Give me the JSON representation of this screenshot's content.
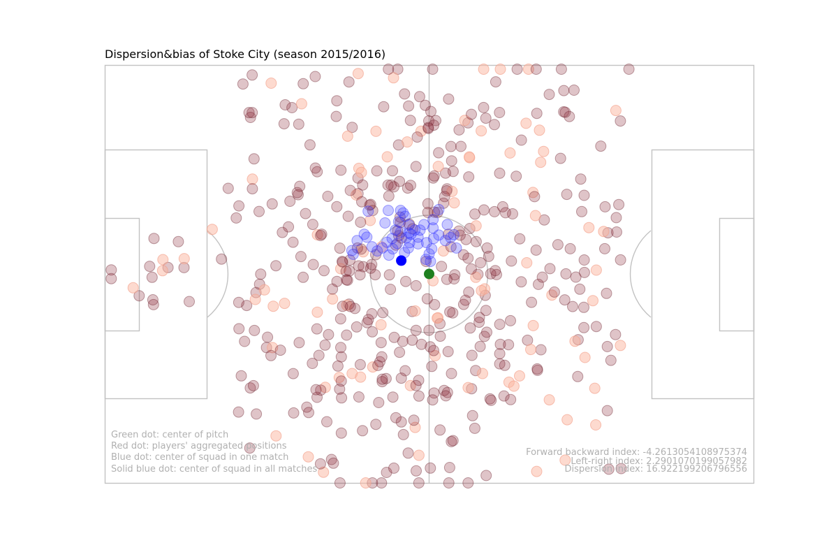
{
  "chart_data": {
    "type": "scatter",
    "title": "Dispersion&bias of Stoke City (season 2015/2016)",
    "xlim": [
      0,
      100
    ],
    "ylim": [
      0,
      100
    ],
    "grid": false,
    "annotations": {
      "legend_lines": [
        "Green dot: center of pitch",
        "Red dot: players' aggregated positions",
        "Blue dot: center of squad in one match",
        "Solid blue dot: center of squad in all matches"
      ],
      "index_lines": [
        "Forward backward index: -4.2613054108975374",
        "Left-right index: 2.2901070199057982",
        "Dispersion index: 16.922199206796556"
      ]
    },
    "series": [
      {
        "role": "players_aggregated_positions",
        "color": "#8b2c3a",
        "light_color": "#fbb5a0",
        "points_generated": 480,
        "seed": 20152016
      },
      {
        "role": "match_squad_centers",
        "color": "#3a3aff",
        "points": [
          [
            40,
            40.5
          ],
          [
            40.4,
            41.2
          ],
          [
            41.2,
            43.5
          ],
          [
            42,
            44.5
          ],
          [
            42.8,
            43.8
          ],
          [
            43.5,
            42.4
          ],
          [
            44.4,
            44
          ],
          [
            45.1,
            42.7
          ],
          [
            46.2,
            44.9
          ],
          [
            46.8,
            43.8
          ],
          [
            47,
            42.5
          ],
          [
            46.5,
            41.3
          ],
          [
            46.9,
            40.2
          ],
          [
            48.3,
            42.8
          ],
          [
            48.3,
            41.2
          ],
          [
            48.6,
            39.5
          ],
          [
            49.2,
            38.2
          ],
          [
            49.6,
            42.5
          ],
          [
            50.4,
            44
          ],
          [
            50.7,
            41.5
          ],
          [
            51.5,
            40.7
          ],
          [
            52.5,
            42
          ],
          [
            53.3,
            41.3
          ],
          [
            53.8,
            40.6
          ],
          [
            54.2,
            43.8
          ],
          [
            52.8,
            38.2
          ],
          [
            50.6,
            37
          ],
          [
            50.6,
            39
          ],
          [
            51.5,
            34.6
          ],
          [
            46,
            35.4
          ],
          [
            45.6,
            34.8
          ],
          [
            43.7,
            34.8
          ],
          [
            46.9,
            38.3
          ],
          [
            47.8,
            39.5
          ],
          [
            47.2,
            40.5
          ],
          [
            45.6,
            40
          ],
          [
            45.3,
            37.5
          ],
          [
            44.8,
            39.5
          ],
          [
            46.3,
            36.2
          ],
          [
            43.2,
            37.8
          ],
          [
            40.6,
            35
          ],
          [
            44.3,
            41.5
          ],
          [
            43.8,
            45.5
          ],
          [
            38.9,
            42
          ],
          [
            38.3,
            45.3
          ],
          [
            38.1,
            44.4
          ],
          [
            50.2,
            47
          ],
          [
            49.5,
            46.5
          ],
          [
            50,
            45.2
          ]
        ]
      },
      {
        "role": "center_of_squad_all_matches",
        "color": "#0000ff",
        "points": [
          [
            45.7,
            53.2
          ]
        ]
      },
      {
        "role": "center_of_pitch",
        "color": "#1e8020",
        "points": [
          [
            50,
            50
          ]
        ]
      }
    ]
  }
}
